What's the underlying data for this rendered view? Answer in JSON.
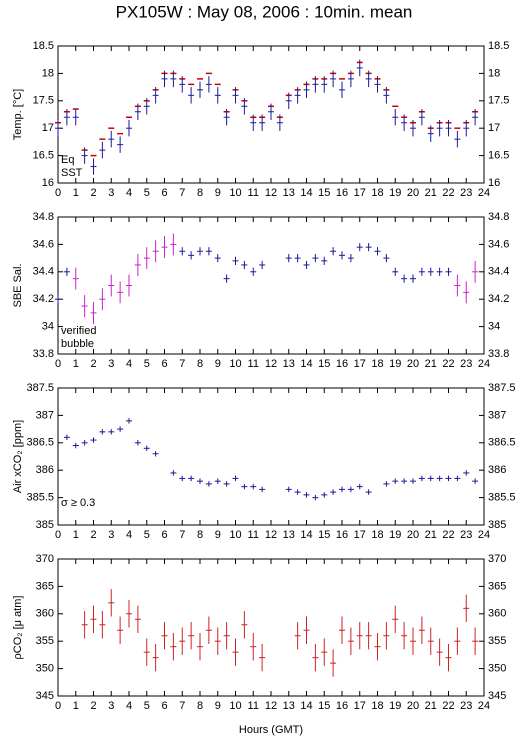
{
  "title": "PX105W : May 08, 2006 : 10min. mean",
  "xlabel": "Hours (GMT)",
  "chart_data": [
    {
      "type": "scatter",
      "ylabel": "Temp. [°C]",
      "x": [
        0,
        0.5,
        1,
        1.5,
        2,
        2.5,
        3,
        3.5,
        4,
        4.5,
        5,
        5.5,
        6,
        6.5,
        7,
        7.5,
        8,
        8.5,
        9,
        9.5,
        10,
        10.5,
        11,
        11.5,
        12,
        12.5,
        13,
        13.5,
        14,
        14.5,
        15,
        15.5,
        16,
        16.5,
        17,
        17.5,
        18,
        18.5,
        19,
        19.5,
        20,
        20.5,
        21,
        21.5,
        22,
        22.5,
        23,
        23.5
      ],
      "series": [
        {
          "name": "Eq",
          "color": "#cc0000",
          "marker": "dash",
          "values": [
            17.1,
            17.3,
            17.35,
            16.6,
            16.5,
            16.8,
            17.0,
            16.9,
            17.2,
            17.4,
            17.5,
            17.7,
            18.0,
            18.0,
            17.9,
            17.8,
            17.9,
            18.0,
            17.8,
            17.3,
            17.7,
            17.5,
            17.2,
            17.2,
            17.4,
            17.2,
            17.6,
            17.7,
            17.8,
            17.9,
            17.9,
            18.0,
            17.9,
            18.0,
            18.2,
            18.0,
            17.9,
            17.7,
            17.4,
            17.2,
            17.1,
            17.3,
            17.0,
            17.1,
            17.1,
            17.0,
            17.1,
            17.3
          ]
        },
        {
          "name": "SST",
          "color": "#1a1a99",
          "marker": "plus",
          "error": 0.15,
          "values": [
            17.0,
            17.2,
            17.2,
            16.5,
            16.3,
            16.6,
            16.8,
            16.7,
            17.0,
            17.3,
            17.4,
            17.6,
            17.9,
            17.9,
            17.8,
            17.6,
            17.7,
            17.8,
            17.6,
            17.2,
            17.6,
            17.4,
            17.1,
            17.1,
            17.3,
            17.1,
            17.5,
            17.6,
            17.7,
            17.8,
            17.8,
            17.9,
            17.7,
            17.9,
            18.1,
            17.9,
            17.8,
            17.6,
            17.2,
            17.1,
            17.0,
            17.2,
            16.9,
            17.0,
            17.0,
            16.8,
            17.0,
            17.2
          ]
        }
      ],
      "xlim": [
        0,
        24
      ],
      "xticks": [
        0,
        1,
        2,
        3,
        4,
        5,
        6,
        7,
        8,
        9,
        10,
        11,
        12,
        13,
        14,
        15,
        16,
        17,
        18,
        19,
        20,
        21,
        22,
        23,
        24
      ],
      "ylim": [
        16,
        18.5
      ],
      "yticks": [
        16,
        16.5,
        17,
        17.5,
        18,
        18.5
      ]
    },
    {
      "type": "scatter",
      "ylabel": "SBE Sal.",
      "x": [
        0,
        0.5,
        1,
        1.5,
        2,
        2.5,
        3,
        3.5,
        4,
        4.5,
        5,
        5.5,
        6,
        6.5,
        7,
        7.5,
        8,
        8.5,
        9,
        9.5,
        10,
        10.5,
        11,
        11.5,
        12,
        12.5,
        13,
        13.5,
        14,
        14.5,
        15,
        15.5,
        16,
        16.5,
        17,
        17.5,
        18,
        18.5,
        19,
        19.5,
        20,
        20.5,
        21,
        21.5,
        22,
        22.5,
        23,
        23.5
      ],
      "series": [
        {
          "name": "verified",
          "color": "#1a1a99",
          "marker": "plus",
          "error": 0.03,
          "values": [
            34.2,
            34.4,
            null,
            null,
            null,
            null,
            null,
            null,
            null,
            null,
            null,
            null,
            null,
            null,
            34.55,
            34.52,
            34.55,
            34.55,
            34.5,
            34.35,
            34.48,
            34.45,
            34.4,
            34.45,
            null,
            null,
            34.5,
            34.5,
            34.45,
            34.5,
            34.48,
            34.55,
            34.52,
            34.5,
            34.58,
            34.58,
            34.55,
            34.5,
            34.4,
            34.35,
            34.35,
            34.4,
            34.4,
            34.4,
            34.4,
            null,
            null,
            null
          ]
        },
        {
          "name": "bubble",
          "color": "#cc22cc",
          "marker": "plus",
          "error": 0.08,
          "values": [
            null,
            null,
            34.35,
            34.15,
            34.1,
            34.2,
            34.3,
            34.25,
            34.3,
            34.45,
            34.5,
            34.55,
            34.58,
            34.6,
            null,
            null,
            null,
            null,
            null,
            null,
            null,
            null,
            null,
            null,
            null,
            null,
            null,
            null,
            null,
            null,
            null,
            null,
            null,
            null,
            null,
            null,
            null,
            null,
            null,
            null,
            null,
            null,
            null,
            null,
            null,
            34.3,
            34.25,
            34.4
          ]
        }
      ],
      "xlim": [
        0,
        24
      ],
      "xticks": [
        0,
        1,
        2,
        3,
        4,
        5,
        6,
        7,
        8,
        9,
        10,
        11,
        12,
        13,
        14,
        15,
        16,
        17,
        18,
        19,
        20,
        21,
        22,
        23,
        24
      ],
      "ylim": [
        33.8,
        34.8
      ],
      "yticks": [
        33.8,
        34,
        34.2,
        34.4,
        34.6,
        34.8
      ]
    },
    {
      "type": "scatter",
      "ylabel": "Air xCO₂ [ppm]",
      "annotation": "σ ≥ 0.3",
      "annotation_color": "#cc22cc",
      "x": [
        0,
        0.5,
        1,
        1.5,
        2,
        2.5,
        3,
        3.5,
        4,
        4.5,
        5,
        5.5,
        6,
        6.5,
        7,
        7.5,
        8,
        8.5,
        9,
        9.5,
        10,
        10.5,
        11,
        11.5,
        12,
        12.5,
        13,
        13.5,
        14,
        14.5,
        15,
        15.5,
        16,
        16.5,
        17,
        17.5,
        18,
        18.5,
        19,
        19.5,
        20,
        20.5,
        21,
        21.5,
        22,
        22.5,
        23,
        23.5
      ],
      "series": [
        {
          "color": "#1a1a99",
          "marker": "plus",
          "error": 0.05,
          "values": [
            null,
            386.6,
            386.45,
            386.5,
            386.55,
            386.7,
            386.7,
            386.75,
            386.9,
            386.5,
            386.4,
            386.3,
            null,
            385.95,
            385.85,
            385.85,
            385.8,
            385.75,
            385.8,
            385.75,
            385.85,
            385.7,
            385.7,
            385.65,
            null,
            null,
            385.65,
            385.6,
            385.55,
            385.5,
            385.55,
            385.6,
            385.65,
            385.65,
            385.7,
            385.6,
            null,
            385.75,
            385.8,
            385.8,
            385.8,
            385.85,
            385.85,
            385.85,
            385.85,
            385.85,
            385.95,
            385.8
          ]
        }
      ],
      "xlim": [
        0,
        24
      ],
      "xticks": [
        0,
        1,
        2,
        3,
        4,
        5,
        6,
        7,
        8,
        9,
        10,
        11,
        12,
        13,
        14,
        15,
        16,
        17,
        18,
        19,
        20,
        21,
        22,
        23,
        24
      ],
      "ylim": [
        385,
        387.5
      ],
      "yticks": [
        385,
        385.5,
        386,
        386.5,
        387,
        387.5
      ]
    },
    {
      "type": "scatter",
      "ylabel": "ρCO₂ [μ atm]",
      "x": [
        0,
        0.5,
        1,
        1.5,
        2,
        2.5,
        3,
        3.5,
        4,
        4.5,
        5,
        5.5,
        6,
        6.5,
        7,
        7.5,
        8,
        8.5,
        9,
        9.5,
        10,
        10.5,
        11,
        11.5,
        12,
        12.5,
        13,
        13.5,
        14,
        14.5,
        15,
        15.5,
        16,
        16.5,
        17,
        17.5,
        18,
        18.5,
        19,
        19.5,
        20,
        20.5,
        21,
        21.5,
        22,
        22.5,
        23,
        23.5
      ],
      "series": [
        {
          "color": "#cc2222",
          "marker": "plus",
          "error": 2.5,
          "values": [
            null,
            null,
            null,
            358,
            359,
            358,
            362,
            357,
            360,
            359,
            353,
            352,
            356,
            354,
            355,
            356,
            354,
            357,
            355,
            356,
            353,
            358,
            354,
            352,
            null,
            null,
            null,
            356,
            357,
            352,
            353,
            351,
            357,
            355,
            356,
            356,
            354,
            356,
            359,
            356,
            355,
            357,
            355,
            353,
            352,
            355,
            361,
            355
          ]
        }
      ],
      "xlim": [
        0,
        24
      ],
      "xticks": [
        0,
        1,
        2,
        3,
        4,
        5,
        6,
        7,
        8,
        9,
        10,
        11,
        12,
        13,
        14,
        15,
        16,
        17,
        18,
        19,
        20,
        21,
        22,
        23,
        24
      ],
      "ylim": [
        345,
        370
      ],
      "yticks": [
        345,
        350,
        355,
        360,
        365,
        370
      ]
    }
  ]
}
